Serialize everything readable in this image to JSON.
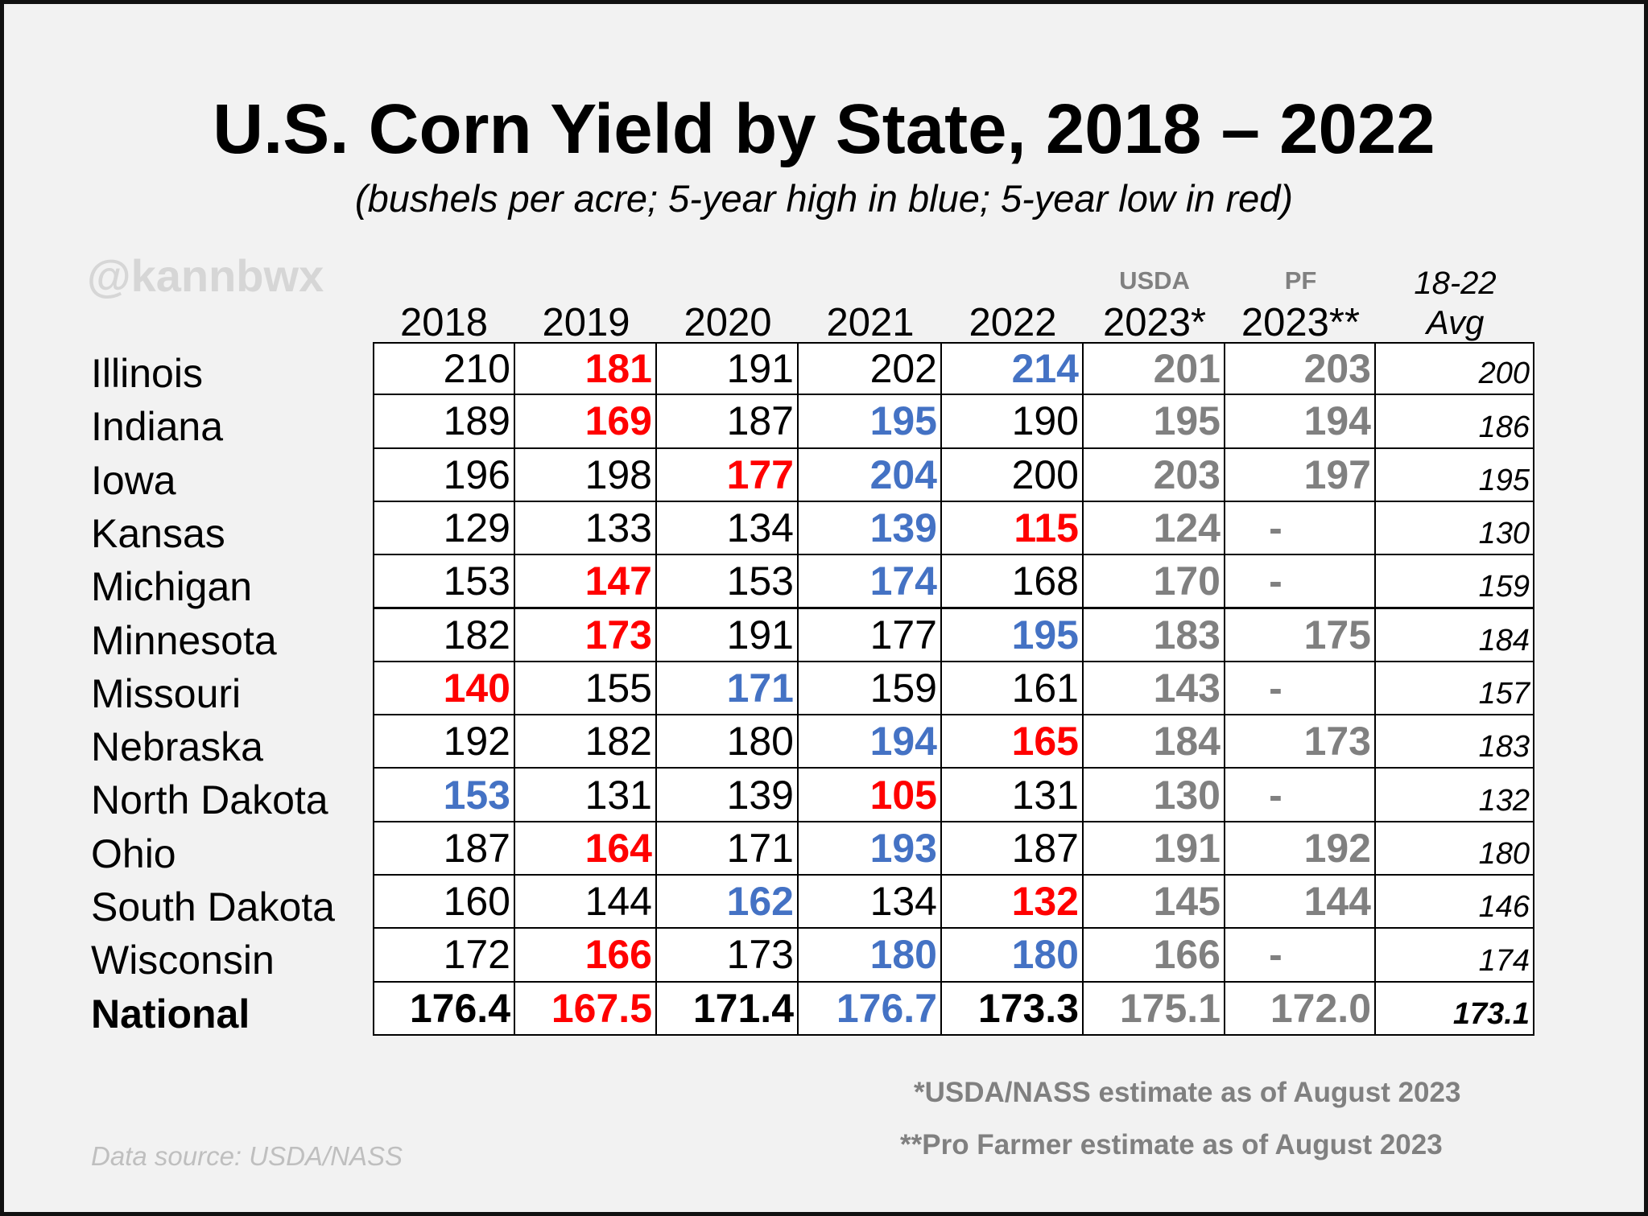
{
  "title": "U.S. Corn Yield by State, 2018 – 2022",
  "subtitle": "(bushels per acre; 5-year high in blue; 5-year low in red)",
  "watermark": "@kannbwx",
  "columns": [
    {
      "label": "2018"
    },
    {
      "label": "2019"
    },
    {
      "label": "2020"
    },
    {
      "label": "2021"
    },
    {
      "label": "2022"
    },
    {
      "top": "USDA",
      "label": "2023*"
    },
    {
      "top": "PF",
      "label": "2023**"
    },
    {
      "top": "18-22",
      "label": "Avg"
    }
  ],
  "rows": [
    {
      "state": "Illinois",
      "values": [
        210,
        181,
        191,
        202,
        214,
        201,
        203,
        200
      ],
      "colors": [
        "#000000",
        "#ff0000",
        "#000000",
        "#000000",
        "#4472c4",
        "#808080",
        "#808080",
        "#000000"
      ]
    },
    {
      "state": "Indiana",
      "values": [
        189,
        169,
        187,
        195,
        190,
        195,
        194,
        186
      ],
      "colors": [
        "#000000",
        "#ff0000",
        "#000000",
        "#4472c4",
        "#000000",
        "#808080",
        "#808080",
        "#000000"
      ]
    },
    {
      "state": "Iowa",
      "values": [
        196,
        198,
        177,
        204,
        200,
        203,
        197,
        195
      ],
      "colors": [
        "#000000",
        "#000000",
        "#ff0000",
        "#4472c4",
        "#000000",
        "#808080",
        "#808080",
        "#000000"
      ]
    },
    {
      "state": "Kansas",
      "values": [
        129,
        133,
        134,
        139,
        115,
        124,
        "-",
        130
      ],
      "colors": [
        "#000000",
        "#000000",
        "#000000",
        "#4472c4",
        "#ff0000",
        "#808080",
        "#808080",
        "#000000"
      ]
    },
    {
      "state": "Michigan",
      "values": [
        153,
        147,
        153,
        174,
        168,
        170,
        "-",
        159
      ],
      "colors": [
        "#000000",
        "#ff0000",
        "#000000",
        "#4472c4",
        "#000000",
        "#808080",
        "#808080",
        "#000000"
      ]
    },
    {
      "state": "Minnesota",
      "values": [
        182,
        173,
        191,
        177,
        195,
        183,
        175,
        184
      ],
      "colors": [
        "#000000",
        "#ff0000",
        "#000000",
        "#000000",
        "#4472c4",
        "#808080",
        "#808080",
        "#000000"
      ]
    },
    {
      "state": "Missouri",
      "values": [
        140,
        155,
        171,
        159,
        161,
        143,
        "-",
        157
      ],
      "colors": [
        "#ff0000",
        "#000000",
        "#4472c4",
        "#000000",
        "#000000",
        "#808080",
        "#808080",
        "#000000"
      ]
    },
    {
      "state": "Nebraska",
      "values": [
        192,
        182,
        180,
        194,
        165,
        184,
        173,
        183
      ],
      "colors": [
        "#000000",
        "#000000",
        "#000000",
        "#4472c4",
        "#ff0000",
        "#808080",
        "#808080",
        "#000000"
      ]
    },
    {
      "state": "North Dakota",
      "values": [
        153,
        131,
        139,
        105,
        131,
        130,
        "-",
        132
      ],
      "colors": [
        "#4472c4",
        "#000000",
        "#000000",
        "#ff0000",
        "#000000",
        "#808080",
        "#808080",
        "#000000"
      ]
    },
    {
      "state": "Ohio",
      "values": [
        187,
        164,
        171,
        193,
        187,
        191,
        192,
        180
      ],
      "colors": [
        "#000000",
        "#ff0000",
        "#000000",
        "#4472c4",
        "#000000",
        "#808080",
        "#808080",
        "#000000"
      ]
    },
    {
      "state": "South Dakota",
      "values": [
        160,
        144,
        162,
        134,
        132,
        145,
        144,
        146
      ],
      "colors": [
        "#000000",
        "#000000",
        "#4472c4",
        "#000000",
        "#ff0000",
        "#808080",
        "#808080",
        "#000000"
      ]
    },
    {
      "state": "Wisconsin",
      "values": [
        172,
        166,
        173,
        180,
        180,
        166,
        "-",
        174
      ],
      "colors": [
        "#000000",
        "#ff0000",
        "#000000",
        "#4472c4",
        "#4472c4",
        "#808080",
        "#808080",
        "#000000"
      ]
    }
  ],
  "total": {
    "state": "National",
    "values": [
      176.4,
      167.5,
      171.4,
      176.7,
      173.3,
      175.1,
      "172.0",
      173.1
    ],
    "colors": [
      "#000000",
      "#ff0000",
      "#000000",
      "#4472c4",
      "#000000",
      "#808080",
      "#808080",
      "#000000"
    ]
  },
  "footnotes": [
    "*USDA/NASS estimate as of August 2023",
    "**Pro Farmer estimate as of August 2023"
  ],
  "source": "Data source: USDA/NASS"
}
